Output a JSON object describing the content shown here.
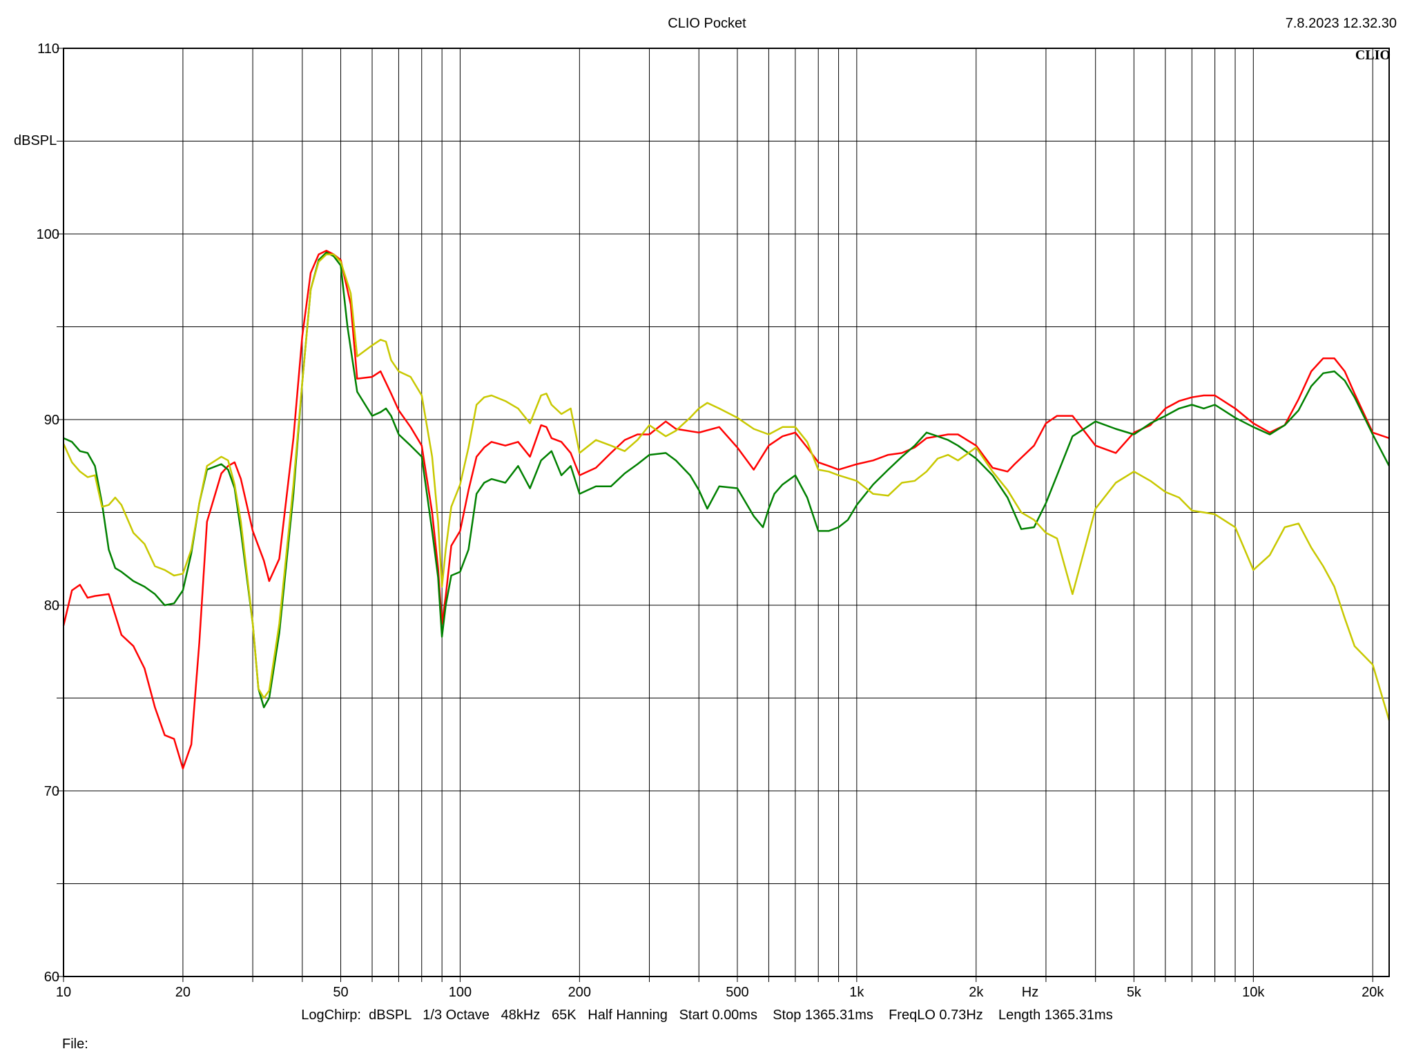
{
  "header": {
    "title": "CLIO Pocket",
    "timestamp": "7.8.2023 12.32.30",
    "brand_mark": "CLIO"
  },
  "footer": {
    "settings": "LogChirp:  dBSPL   1/3 Octave   48kHz   65K   Half Hanning   Start 0.00ms    Stop 1365.31ms    FreqLO 0.73Hz    Length 1365.31ms",
    "file_label": "File:"
  },
  "chart_data": {
    "type": "line",
    "title": "",
    "xlabel": "Hz",
    "ylabel": "dBSPL",
    "x_scale": "log",
    "xlim": [
      10,
      22000
    ],
    "ylim": [
      60,
      110
    ],
    "grid": true,
    "x_ticks": [
      {
        "value": 10,
        "label": "10"
      },
      {
        "value": 20,
        "label": "20"
      },
      {
        "value": 50,
        "label": "50"
      },
      {
        "value": 100,
        "label": "100"
      },
      {
        "value": 200,
        "label": "200"
      },
      {
        "value": 500,
        "label": "500"
      },
      {
        "value": 1000,
        "label": "1k"
      },
      {
        "value": 2000,
        "label": "2k"
      },
      {
        "value": 5000,
        "label": "5k"
      },
      {
        "value": 10000,
        "label": "10k"
      },
      {
        "value": 20000,
        "label": "20k"
      }
    ],
    "y_ticks": [
      {
        "value": 60,
        "label": "60"
      },
      {
        "value": 70,
        "label": "70"
      },
      {
        "value": 80,
        "label": "80"
      },
      {
        "value": 90,
        "label": "90"
      },
      {
        "value": 100,
        "label": "100"
      },
      {
        "value": 110,
        "label": "110"
      }
    ],
    "colors": {
      "red": "#ff0000",
      "green": "#008000",
      "yellow": "#c8c800",
      "grid": "#000000"
    },
    "series": [
      {
        "color": "red",
        "x": [
          10,
          10.5,
          11,
          11.5,
          12,
          13,
          14,
          15,
          16,
          17,
          18,
          19,
          20,
          21,
          22,
          23,
          25,
          26,
          27,
          28,
          30,
          32,
          33,
          35,
          38,
          40,
          42,
          44,
          46,
          48,
          50,
          53,
          55,
          60,
          63,
          67,
          70,
          75,
          80,
          85,
          88,
          90,
          92,
          95,
          100,
          105,
          110,
          115,
          120,
          130,
          140,
          150,
          160,
          165,
          170,
          180,
          190,
          200,
          220,
          240,
          260,
          280,
          300,
          330,
          350,
          400,
          450,
          500,
          550,
          600,
          650,
          700,
          750,
          800,
          850,
          900,
          1000,
          1100,
          1200,
          1300,
          1400,
          1500,
          1600,
          1700,
          1800,
          2000,
          2200,
          2400,
          2500,
          2800,
          3000,
          3200,
          3500,
          4000,
          4500,
          5000,
          5500,
          6000,
          6500,
          7000,
          7500,
          8000,
          9000,
          10000,
          11000,
          12000,
          13000,
          14000,
          15000,
          16000,
          17000,
          18000,
          20000,
          22000
        ],
        "y": [
          78.9,
          80.8,
          81.1,
          80.4,
          80.5,
          80.6,
          78.4,
          77.8,
          76.6,
          74.5,
          73.0,
          72.8,
          71.2,
          72.5,
          78.0,
          84.5,
          87.1,
          87.5,
          87.7,
          86.8,
          84.0,
          82.4,
          81.3,
          82.5,
          89.0,
          94.5,
          97.9,
          98.9,
          99.1,
          98.9,
          98.6,
          96.2,
          92.2,
          92.3,
          92.6,
          91.4,
          90.5,
          89.6,
          88.6,
          85.0,
          82.0,
          79.0,
          80.5,
          83.2,
          84.0,
          86.2,
          88.0,
          88.5,
          88.8,
          88.6,
          88.8,
          88.0,
          89.7,
          89.6,
          89.0,
          88.8,
          88.2,
          87.0,
          87.4,
          88.2,
          88.9,
          89.2,
          89.2,
          89.9,
          89.5,
          89.3,
          89.6,
          88.5,
          87.3,
          88.6,
          89.1,
          89.3,
          88.5,
          87.7,
          87.5,
          87.3,
          87.6,
          87.8,
          88.1,
          88.2,
          88.5,
          89.0,
          89.1,
          89.2,
          89.2,
          88.6,
          87.4,
          87.2,
          87.6,
          88.6,
          89.8,
          90.2,
          90.2,
          88.6,
          88.2,
          89.3,
          89.7,
          90.6,
          91.0,
          91.2,
          91.3,
          91.3,
          90.6,
          89.8,
          89.3,
          89.7,
          91.1,
          92.6,
          93.3,
          93.3,
          92.6,
          91.4,
          89.3,
          89.0
        ]
      },
      {
        "color": "green",
        "x": [
          10,
          10.5,
          11,
          11.5,
          12,
          12.5,
          13,
          13.5,
          14,
          15,
          16,
          17,
          18,
          19,
          20,
          21,
          22,
          23,
          25,
          26,
          27,
          28,
          30,
          31,
          32,
          33,
          35,
          38,
          40,
          42,
          44,
          46,
          48,
          50,
          52,
          55,
          60,
          63,
          65,
          67,
          70,
          75,
          80,
          85,
          88,
          90,
          92,
          95,
          100,
          105,
          110,
          115,
          120,
          130,
          140,
          150,
          160,
          170,
          180,
          190,
          200,
          220,
          240,
          260,
          280,
          300,
          330,
          350,
          380,
          400,
          420,
          450,
          500,
          550,
          580,
          600,
          620,
          650,
          700,
          750,
          800,
          850,
          900,
          950,
          1000,
          1100,
          1200,
          1300,
          1400,
          1500,
          1600,
          1700,
          1800,
          2000,
          2200,
          2400,
          2600,
          2800,
          3000,
          3200,
          3500,
          4000,
          4500,
          5000,
          5500,
          6000,
          6500,
          7000,
          7500,
          8000,
          9000,
          10000,
          11000,
          12000,
          13000,
          14000,
          15000,
          16000,
          17000,
          18000,
          20000,
          22000
        ],
        "y": [
          89.0,
          88.8,
          88.3,
          88.2,
          87.5,
          85.5,
          83.0,
          82.0,
          81.8,
          81.3,
          81.0,
          80.6,
          80.0,
          80.1,
          80.8,
          82.8,
          85.5,
          87.3,
          87.6,
          87.3,
          86.3,
          84.0,
          79.0,
          75.5,
          74.5,
          75.0,
          78.5,
          86.0,
          92.0,
          97.0,
          98.6,
          99.0,
          98.8,
          98.3,
          95.0,
          91.5,
          90.2,
          90.4,
          90.6,
          90.2,
          89.2,
          88.6,
          88.0,
          84.0,
          81.5,
          78.3,
          80.0,
          81.6,
          81.8,
          83.0,
          86.0,
          86.6,
          86.8,
          86.6,
          87.5,
          86.3,
          87.8,
          88.3,
          87.0,
          87.5,
          86.0,
          86.4,
          86.4,
          87.1,
          87.6,
          88.1,
          88.2,
          87.8,
          87.0,
          86.2,
          85.2,
          86.4,
          86.3,
          84.8,
          84.2,
          85.2,
          86.0,
          86.5,
          87.0,
          85.8,
          84.0,
          84.0,
          84.2,
          84.6,
          85.4,
          86.5,
          87.3,
          88.0,
          88.6,
          89.3,
          89.1,
          88.9,
          88.6,
          87.9,
          87.0,
          85.8,
          84.1,
          84.2,
          85.5,
          87.0,
          89.1,
          89.9,
          89.5,
          89.2,
          89.8,
          90.2,
          90.6,
          90.8,
          90.6,
          90.8,
          90.1,
          89.6,
          89.2,
          89.7,
          90.5,
          91.8,
          92.5,
          92.6,
          92.1,
          91.2,
          89.2,
          87.5
        ]
      },
      {
        "color": "yellow",
        "x": [
          10,
          10.5,
          11,
          11.5,
          12,
          12.5,
          13,
          13.5,
          14,
          15,
          16,
          17,
          18,
          19,
          20,
          21,
          22,
          23,
          25,
          26,
          27,
          28,
          30,
          31,
          32,
          33,
          35,
          38,
          40,
          42,
          44,
          46,
          48,
          50,
          53,
          55,
          60,
          63,
          65,
          67,
          70,
          75,
          80,
          85,
          88,
          90,
          92,
          95,
          100,
          105,
          110,
          115,
          120,
          130,
          140,
          150,
          160,
          165,
          170,
          180,
          190,
          200,
          220,
          240,
          260,
          280,
          300,
          330,
          350,
          380,
          400,
          420,
          450,
          500,
          550,
          600,
          650,
          700,
          750,
          800,
          850,
          900,
          1000,
          1100,
          1200,
          1300,
          1400,
          1500,
          1600,
          1700,
          1800,
          2000,
          2200,
          2400,
          2600,
          2800,
          3000,
          3200,
          3500,
          4000,
          4500,
          5000,
          5500,
          6000,
          6500,
          7000,
          7500,
          8000,
          9000,
          10000,
          11000,
          12000,
          13000,
          14000,
          15000,
          16000,
          17000,
          18000,
          20000,
          22000
        ],
        "y": [
          88.7,
          87.7,
          87.2,
          86.9,
          87.0,
          85.3,
          85.4,
          85.8,
          85.4,
          83.9,
          83.3,
          82.1,
          81.9,
          81.6,
          81.7,
          83.0,
          85.5,
          87.5,
          88.0,
          87.8,
          86.5,
          84.5,
          79.0,
          75.5,
          75.0,
          75.4,
          79.0,
          86.5,
          92.0,
          97.0,
          98.5,
          98.9,
          98.9,
          98.5,
          96.8,
          93.4,
          94.0,
          94.3,
          94.2,
          93.2,
          92.6,
          92.3,
          91.3,
          88.0,
          84.5,
          81.0,
          83.0,
          85.3,
          86.5,
          88.5,
          90.8,
          91.2,
          91.3,
          91.0,
          90.6,
          89.8,
          91.3,
          91.4,
          90.8,
          90.3,
          90.6,
          88.2,
          88.9,
          88.6,
          88.3,
          88.9,
          89.7,
          89.1,
          89.4,
          90.1,
          90.6,
          90.9,
          90.6,
          90.1,
          89.5,
          89.2,
          89.6,
          89.6,
          88.8,
          87.3,
          87.2,
          87.0,
          86.7,
          86.0,
          85.9,
          86.6,
          86.7,
          87.2,
          87.9,
          88.1,
          87.8,
          88.5,
          87.2,
          86.2,
          85.0,
          84.6,
          83.9,
          83.6,
          80.6,
          85.2,
          86.6,
          87.2,
          86.7,
          86.1,
          85.8,
          85.1,
          85.0,
          84.9,
          84.2,
          81.9,
          82.7,
          84.2,
          84.4,
          83.1,
          82.1,
          81.0,
          79.3,
          77.8,
          76.8,
          73.8
        ]
      }
    ]
  }
}
